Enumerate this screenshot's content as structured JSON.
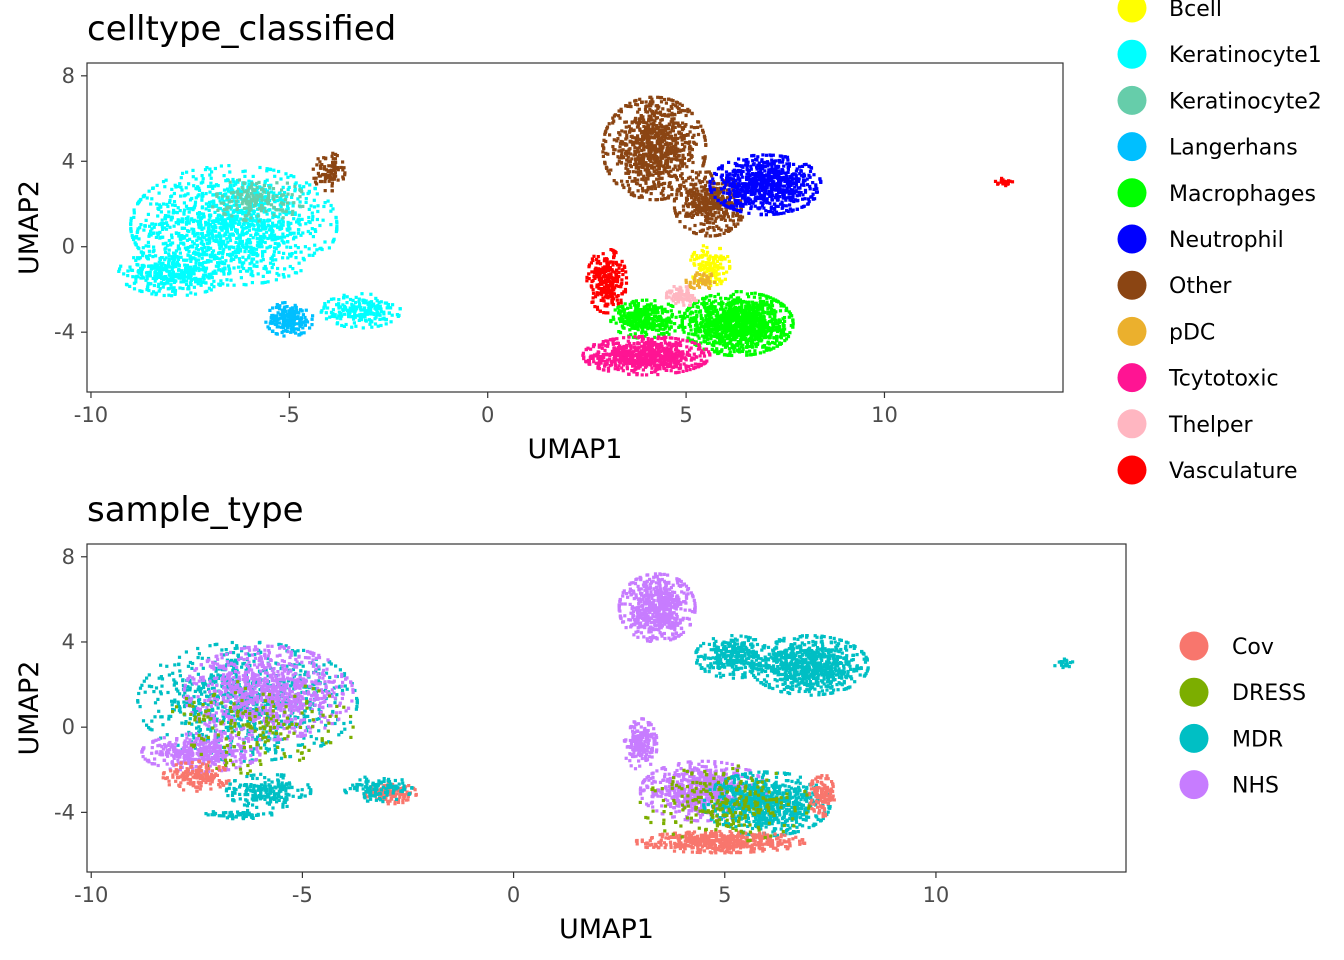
{
  "chart_data": [
    {
      "type": "scatter",
      "title": "celltype_classified",
      "xlabel": "UMAP1",
      "ylabel": "UMAP2",
      "xlim": [
        -10.1,
        14.5
      ],
      "ylim": [
        -6.8,
        8.6
      ],
      "x_ticks": [
        -10,
        -5,
        0,
        5,
        10
      ],
      "x_tick_labels": [
        "-10",
        "-5",
        "0",
        "5",
        "10"
      ],
      "y_ticks": [
        8,
        4,
        0,
        -4
      ],
      "y_tick_labels": [
        "8",
        "4",
        "0",
        "-4"
      ],
      "grid": false,
      "legend_position": "right",
      "legend": [
        {
          "name": "Bcell",
          "color": "#FFFF00"
        },
        {
          "name": "Keratinocyte1",
          "color": "#00FFFF"
        },
        {
          "name": "Keratinocyte2",
          "color": "#66CDAA"
        },
        {
          "name": "Langerhans",
          "color": "#00BFFF"
        },
        {
          "name": "Macrophages",
          "color": "#00FF00"
        },
        {
          "name": "Neutrophil",
          "color": "#0000FF"
        },
        {
          "name": "Other",
          "color": "#8B4513"
        },
        {
          "name": "pDC",
          "color": "#EBB02D"
        },
        {
          "name": "Tcytotoxic",
          "color": "#FF1493"
        },
        {
          "name": "Thelper",
          "color": "#FFB6C1"
        },
        {
          "name": "Vasculature",
          "color": "#FF0000"
        }
      ],
      "clusters": [
        {
          "category": "Keratinocyte1",
          "cx": -6.4,
          "cy": 1.0,
          "rx": 2.6,
          "ry": 2.8,
          "n": 1300
        },
        {
          "category": "Keratinocyte1",
          "cx": -7.9,
          "cy": -1.2,
          "rx": 1.4,
          "ry": 1.1,
          "n": 400
        },
        {
          "category": "Keratinocyte1",
          "cx": -3.2,
          "cy": -3.0,
          "rx": 1.0,
          "ry": 0.8,
          "n": 220
        },
        {
          "category": "Keratinocyte2",
          "cx": -5.8,
          "cy": 2.2,
          "rx": 1.2,
          "ry": 1.0,
          "n": 160
        },
        {
          "category": "Langerhans",
          "cx": -5.0,
          "cy": -3.4,
          "rx": 0.6,
          "ry": 0.8,
          "n": 200
        },
        {
          "category": "Other",
          "cx": -4.0,
          "cy": 3.5,
          "rx": 0.4,
          "ry": 0.9,
          "n": 90
        },
        {
          "category": "Other",
          "cx": 4.2,
          "cy": 4.6,
          "rx": 1.3,
          "ry": 2.4,
          "n": 900
        },
        {
          "category": "Other",
          "cx": 5.6,
          "cy": 2.0,
          "rx": 0.9,
          "ry": 1.5,
          "n": 400
        },
        {
          "category": "Neutrophil",
          "cx": 7.0,
          "cy": 2.9,
          "rx": 1.4,
          "ry": 1.4,
          "n": 800
        },
        {
          "category": "Vasculature",
          "cx": 3.0,
          "cy": -1.6,
          "rx": 0.5,
          "ry": 1.5,
          "n": 260
        },
        {
          "category": "Vasculature",
          "cx": 13.0,
          "cy": 3.0,
          "rx": 0.25,
          "ry": 0.2,
          "n": 25
        },
        {
          "category": "Macrophages",
          "cx": 6.3,
          "cy": -3.6,
          "rx": 1.4,
          "ry": 1.5,
          "n": 1200
        },
        {
          "category": "Macrophages",
          "cx": 4.0,
          "cy": -3.4,
          "rx": 0.9,
          "ry": 0.9,
          "n": 350
        },
        {
          "category": "Bcell",
          "cx": 5.6,
          "cy": -0.9,
          "rx": 0.5,
          "ry": 1.0,
          "n": 150
        },
        {
          "category": "Tcytotoxic",
          "cx": 4.0,
          "cy": -5.1,
          "rx": 1.6,
          "ry": 0.9,
          "n": 700
        },
        {
          "category": "Thelper",
          "cx": 4.9,
          "cy": -2.3,
          "rx": 0.4,
          "ry": 0.5,
          "n": 80
        },
        {
          "category": "pDC",
          "cx": 5.4,
          "cy": -1.6,
          "rx": 0.4,
          "ry": 0.4,
          "n": 50
        }
      ]
    },
    {
      "type": "scatter",
      "title": "sample_type",
      "xlabel": "UMAP1",
      "ylabel": "UMAP2",
      "xlim": [
        -10.1,
        14.5
      ],
      "ylim": [
        -6.8,
        8.6
      ],
      "x_ticks": [
        -10,
        -5,
        0,
        5,
        10
      ],
      "x_tick_labels": [
        "-10",
        "-5",
        "0",
        "5",
        "10"
      ],
      "y_ticks": [
        8,
        4,
        0,
        -4
      ],
      "y_tick_labels": [
        "8",
        "4",
        "0",
        "-4"
      ],
      "grid": false,
      "legend_position": "right",
      "legend": [
        {
          "name": "Cov",
          "color": "#F8766D"
        },
        {
          "name": "DRESS",
          "color": "#7CAE00"
        },
        {
          "name": "MDR",
          "color": "#00BFC4"
        },
        {
          "name": "NHS",
          "color": "#C77CFF"
        }
      ],
      "clusters": [
        {
          "category": "MDR",
          "cx": -6.3,
          "cy": 1.2,
          "rx": 2.6,
          "ry": 2.8,
          "n": 900
        },
        {
          "category": "NHS",
          "cx": -5.8,
          "cy": 1.6,
          "rx": 2.0,
          "ry": 2.2,
          "n": 900
        },
        {
          "category": "NHS",
          "cx": -7.4,
          "cy": -1.2,
          "rx": 1.4,
          "ry": 0.9,
          "n": 400
        },
        {
          "category": "DRESS",
          "cx": -6.0,
          "cy": 0.0,
          "rx": 2.2,
          "ry": 2.2,
          "n": 180
        },
        {
          "category": "Cov",
          "cx": -7.5,
          "cy": -2.3,
          "rx": 0.8,
          "ry": 0.7,
          "n": 160
        },
        {
          "category": "MDR",
          "cx": -5.8,
          "cy": -3.0,
          "rx": 1.0,
          "ry": 0.8,
          "n": 200
        },
        {
          "category": "MDR",
          "cx": -6.5,
          "cy": -4.1,
          "rx": 0.8,
          "ry": 0.2,
          "n": 60
        },
        {
          "category": "Cov",
          "cx": -2.9,
          "cy": -3.1,
          "rx": 0.6,
          "ry": 0.5,
          "n": 140
        },
        {
          "category": "MDR",
          "cx": -3.2,
          "cy": -2.9,
          "rx": 0.8,
          "ry": 0.6,
          "n": 120
        },
        {
          "category": "NHS",
          "cx": 3.4,
          "cy": 5.6,
          "rx": 0.9,
          "ry": 1.6,
          "n": 600
        },
        {
          "category": "MDR",
          "cx": 7.0,
          "cy": 2.9,
          "rx": 1.4,
          "ry": 1.4,
          "n": 800
        },
        {
          "category": "MDR",
          "cx": 5.2,
          "cy": 3.3,
          "rx": 0.9,
          "ry": 1.0,
          "n": 300
        },
        {
          "category": "NHS",
          "cx": 3.0,
          "cy": -0.8,
          "rx": 0.4,
          "ry": 1.2,
          "n": 200
        },
        {
          "category": "NHS",
          "cx": 4.5,
          "cy": -3.0,
          "rx": 1.5,
          "ry": 1.4,
          "n": 700
        },
        {
          "category": "MDR",
          "cx": 6.0,
          "cy": -3.6,
          "rx": 1.5,
          "ry": 1.5,
          "n": 800
        },
        {
          "category": "Cov",
          "cx": 4.9,
          "cy": -5.4,
          "rx": 2.0,
          "ry": 0.5,
          "n": 500
        },
        {
          "category": "Cov",
          "cx": 7.3,
          "cy": -3.2,
          "rx": 0.3,
          "ry": 1.0,
          "n": 120
        },
        {
          "category": "DRESS",
          "cx": 5.0,
          "cy": -3.6,
          "rx": 2.0,
          "ry": 1.8,
          "n": 250
        },
        {
          "category": "MDR",
          "cx": 13.0,
          "cy": 3.0,
          "rx": 0.25,
          "ry": 0.2,
          "n": 20
        }
      ]
    }
  ]
}
